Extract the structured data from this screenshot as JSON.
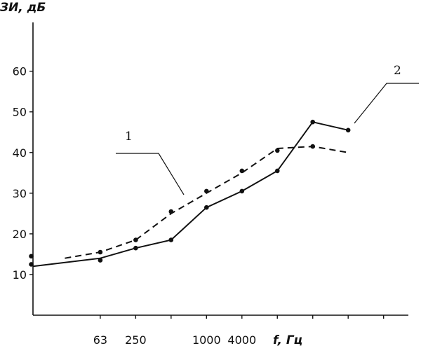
{
  "chart_data": {
    "type": "line",
    "ylabel": "ЗИ, дБ",
    "xlabel": "f, Гц",
    "ylim": [
      0,
      72
    ],
    "yticks": [
      10,
      20,
      30,
      40,
      50,
      60
    ],
    "x_positions": [
      1,
      2,
      3,
      4,
      5,
      6,
      7,
      8,
      9,
      10
    ],
    "xlim": [
      0.1,
      10.7
    ],
    "xtick_positions": [
      2,
      3,
      4,
      5,
      6,
      7,
      8,
      9,
      10
    ],
    "xtick_labels": [
      {
        "x": 2,
        "text": "63"
      },
      {
        "x": 3,
        "text": "250"
      },
      {
        "x": 5,
        "text": "1000"
      },
      {
        "x": 6,
        "text": "4000"
      }
    ],
    "series": [
      {
        "name": "1",
        "style": "dashed",
        "values": [
          14,
          15.5,
          18.5,
          25,
          30,
          35,
          41,
          41.5,
          40
        ],
        "x": [
          1,
          2,
          3,
          4,
          5,
          6,
          7,
          8,
          9
        ],
        "markers": [
          [
            0.05,
            14.5
          ],
          [
            2,
            15.5
          ],
          [
            3,
            18.5
          ],
          [
            4,
            25.5
          ],
          [
            5,
            30.5
          ],
          [
            6,
            35.5
          ],
          [
            7,
            40.5
          ],
          [
            8,
            41.5
          ]
        ]
      },
      {
        "name": "2",
        "style": "solid",
        "values": [
          12,
          14,
          16.5,
          18.5,
          26.5,
          30.5,
          35.5,
          47.5,
          45.5
        ],
        "x": [
          0.1,
          2,
          3,
          4,
          5,
          6,
          7,
          8,
          9
        ],
        "markers": [
          [
            0.05,
            12.5
          ],
          [
            2,
            13.5
          ],
          [
            3,
            16.5
          ],
          [
            4,
            18.5
          ],
          [
            5,
            26.5
          ],
          [
            6,
            30.5
          ],
          [
            7,
            35.5
          ],
          [
            8,
            47.5
          ],
          [
            9,
            45.5
          ]
        ]
      }
    ],
    "annotations": [
      {
        "text": "1",
        "target_series": 0
      },
      {
        "text": "2",
        "target_series": 1
      }
    ]
  }
}
